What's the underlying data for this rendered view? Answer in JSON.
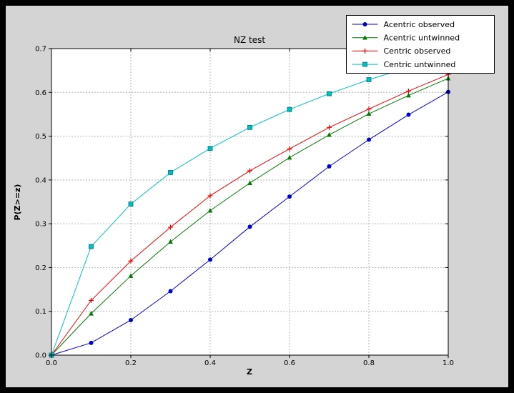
{
  "window": {
    "frame_color": "#000000",
    "figure_background": "#d4d4d4",
    "plot_background": "#ffffff"
  },
  "chart_data": {
    "type": "line",
    "title": "NZ test",
    "xlabel": "Z",
    "ylabel": "P(Z>=z)",
    "xlim": [
      0.0,
      1.0
    ],
    "ylim": [
      0.0,
      0.7
    ],
    "xticks": [
      0.0,
      0.2,
      0.4,
      0.6,
      0.8,
      1.0
    ],
    "xtick_labels": [
      "0.0",
      "0.2",
      "0.4",
      "0.6",
      "0.8",
      "1.0"
    ],
    "yticks": [
      0.0,
      0.1,
      0.2,
      0.3,
      0.4,
      0.5,
      0.6,
      0.7
    ],
    "ytick_labels": [
      "0.0",
      "0.1",
      "0.2",
      "0.3",
      "0.4",
      "0.5",
      "0.6",
      "0.7"
    ],
    "grid": {
      "on": true,
      "style": "dashed",
      "color": "#b4b4b4"
    },
    "legend": {
      "position": "upper right",
      "background": "#ffffff",
      "border": "#000000"
    },
    "x": [
      0.0,
      0.1,
      0.2,
      0.3,
      0.4,
      0.5,
      0.6,
      0.7,
      0.8,
      0.9,
      1.0
    ],
    "series": [
      {
        "name": "Acentric observed",
        "color": "#0000cc",
        "marker": "circle",
        "values": [
          0.0,
          0.028,
          0.08,
          0.146,
          0.218,
          0.293,
          0.362,
          0.431,
          0.492,
          0.549,
          0.601
        ]
      },
      {
        "name": "Acentric untwinned",
        "color": "#007a00",
        "marker": "triangle",
        "values": [
          0.0,
          0.095,
          0.181,
          0.259,
          0.33,
          0.393,
          0.451,
          0.503,
          0.551,
          0.593,
          0.632
        ]
      },
      {
        "name": "Centric observed",
        "color": "#ee0000",
        "marker": "plus",
        "values": [
          0.0,
          0.125,
          0.215,
          0.292,
          0.364,
          0.421,
          0.471,
          0.52,
          0.562,
          0.603,
          0.641
        ]
      },
      {
        "name": "Centric untwinned",
        "color": "#00bfbf",
        "marker": "square",
        "values": [
          0.0,
          0.248,
          0.345,
          0.417,
          0.472,
          0.52,
          0.561,
          0.597,
          0.629,
          0.657,
          0.683
        ]
      }
    ]
  }
}
